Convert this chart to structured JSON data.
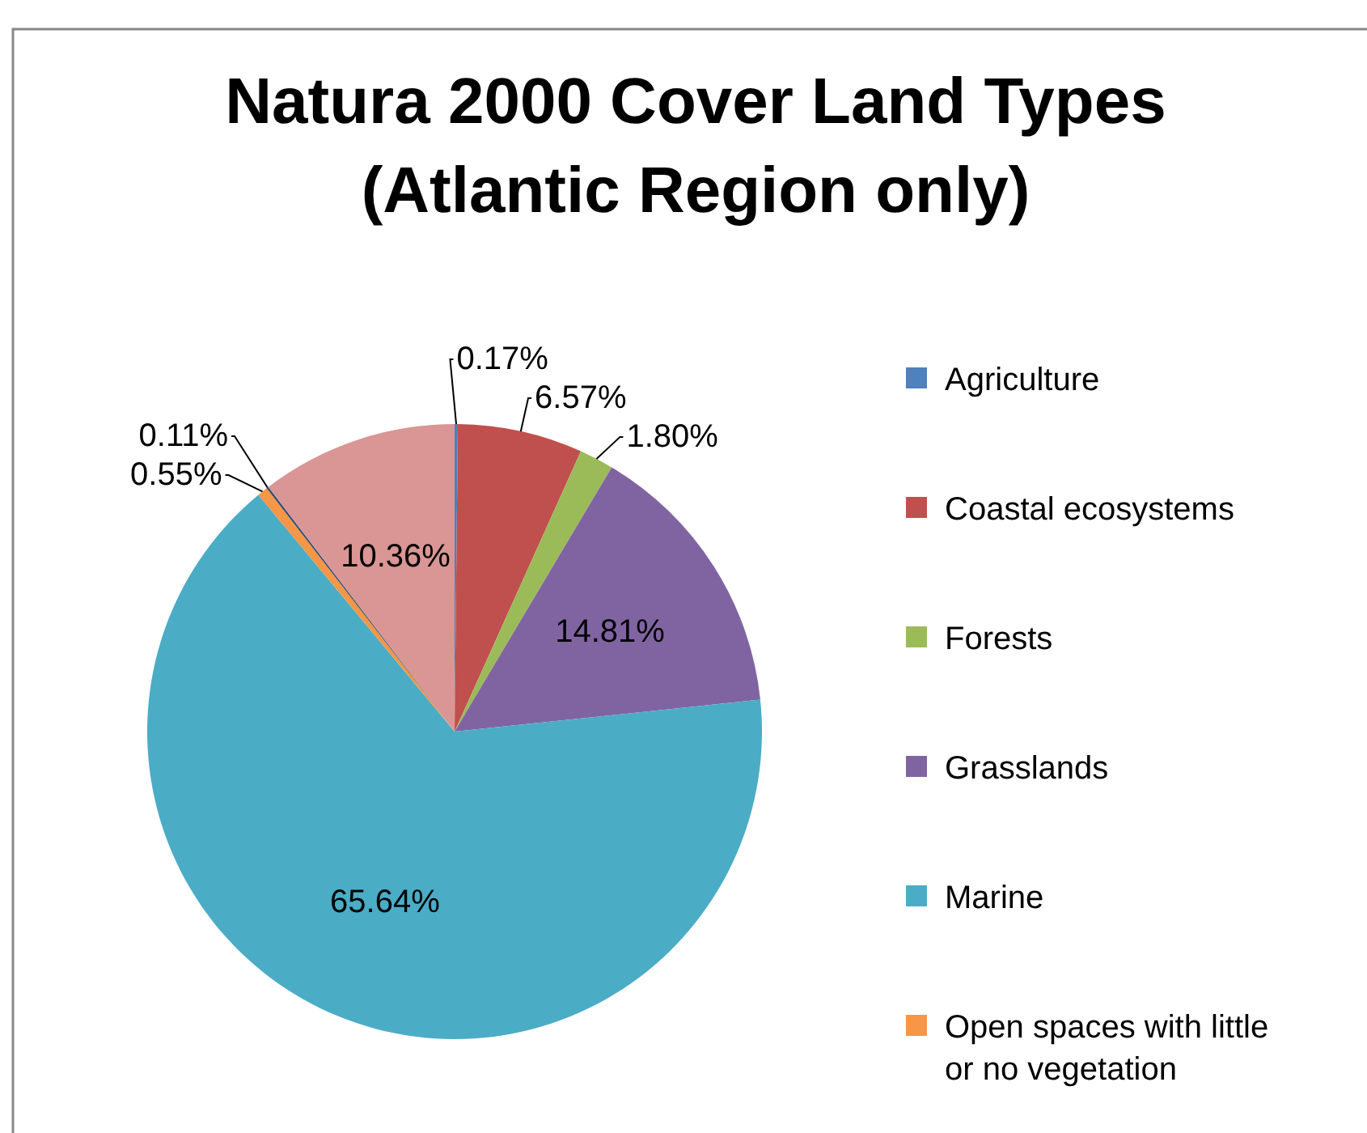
{
  "chart_data": {
    "type": "pie",
    "title": "Natura 2000 Cover Land Types (Atlantic Region only)",
    "categories": [
      "Agriculture",
      "Coastal ecosystems",
      "Forests",
      "Grasslands",
      "Marine",
      "Open spaces with little or no vegetation",
      null,
      null
    ],
    "values": [
      0.17,
      6.57,
      1.8,
      14.81,
      65.64,
      0.55,
      0.11,
      10.36
    ],
    "colors": [
      "#4f81bd",
      "#c0504d",
      "#9bbb59",
      "#8064a2",
      "#4bacc6",
      "#f79646",
      "#2c4d75",
      "#d99694"
    ],
    "value_labels": [
      "0.17%",
      "6.57%",
      "1.80%",
      "14.81%",
      "65.64%",
      "0.55%",
      "0.11%",
      "10.36%"
    ],
    "legend": "right"
  }
}
